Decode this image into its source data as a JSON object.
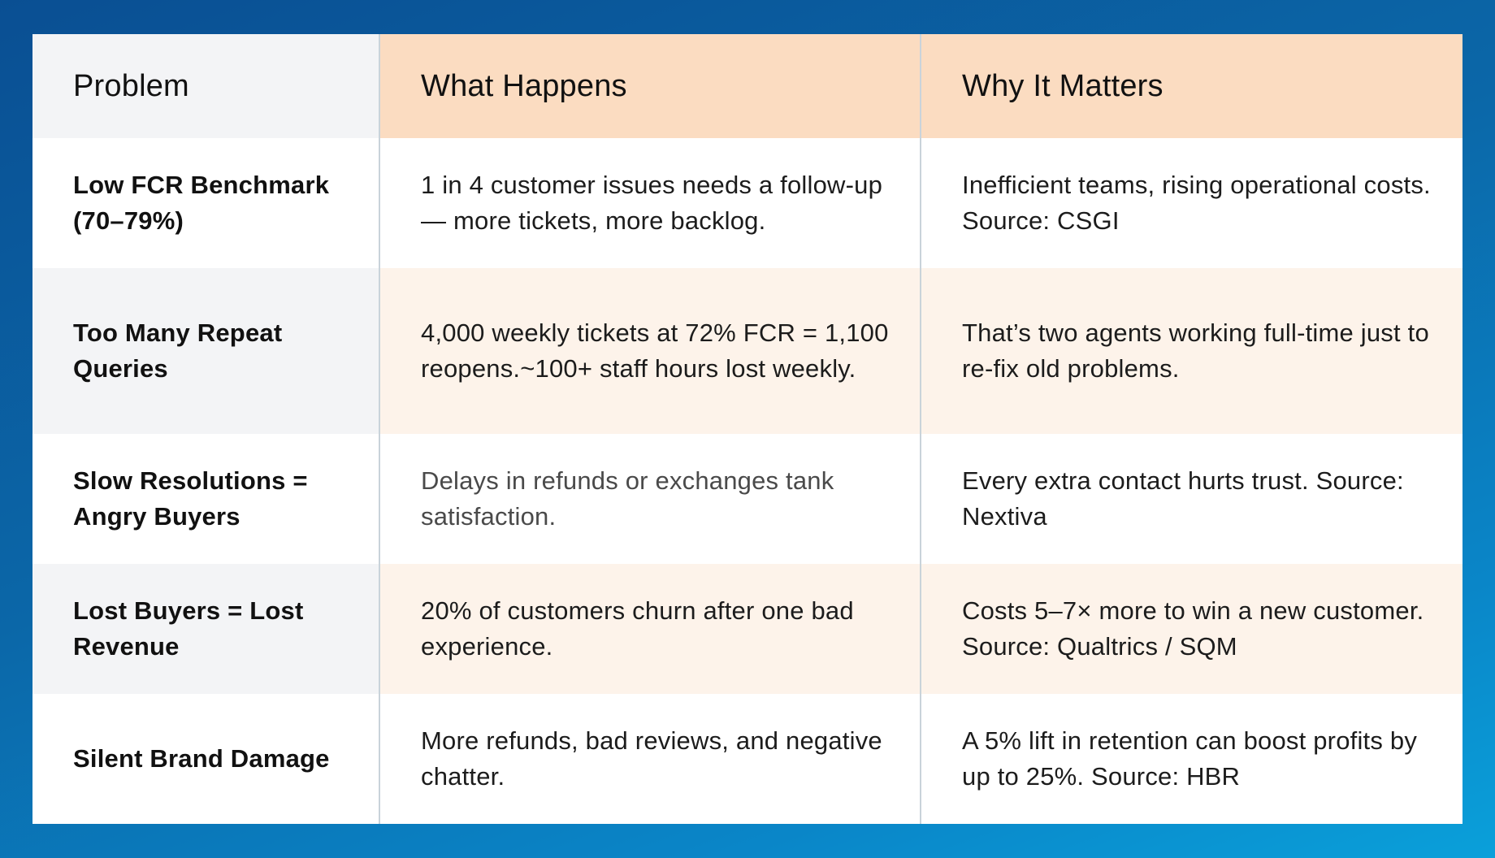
{
  "table": {
    "headers": {
      "problem": "Problem",
      "what": "What Happens",
      "why": "Why It Matters"
    },
    "rows": [
      {
        "problem": "Low FCR Benchmark (70–79%)",
        "what": "1 in 4 customer issues needs a follow-up — more tickets, more backlog.",
        "why": "Inefficient teams, rising operational costs. Source: CSGI"
      },
      {
        "problem": "Too Many Repeat Queries",
        "what": "4,000 weekly tickets at 72% FCR = 1,100 reopens.~100+ staff hours lost weekly.",
        "why": "That’s two agents working full-time just to re-fix old problems."
      },
      {
        "problem": "Slow Resolutions = Angry Buyers",
        "what": "Delays in refunds or exchanges tank satisfaction.",
        "why": "Every extra contact hurts trust. Source: Nextiva"
      },
      {
        "problem": "Lost Buyers = Lost Revenue",
        "what": "20% of customers churn after one bad experience.",
        "why": "Costs 5–7× more to win a new customer. Source: Qualtrics / SQM"
      },
      {
        "problem": "Silent Brand Damage",
        "what": "More refunds, bad reviews, and negative chatter.",
        "why": "A 5% lift in retention can boost profits by up to 25%. Source: HBR"
      }
    ]
  }
}
